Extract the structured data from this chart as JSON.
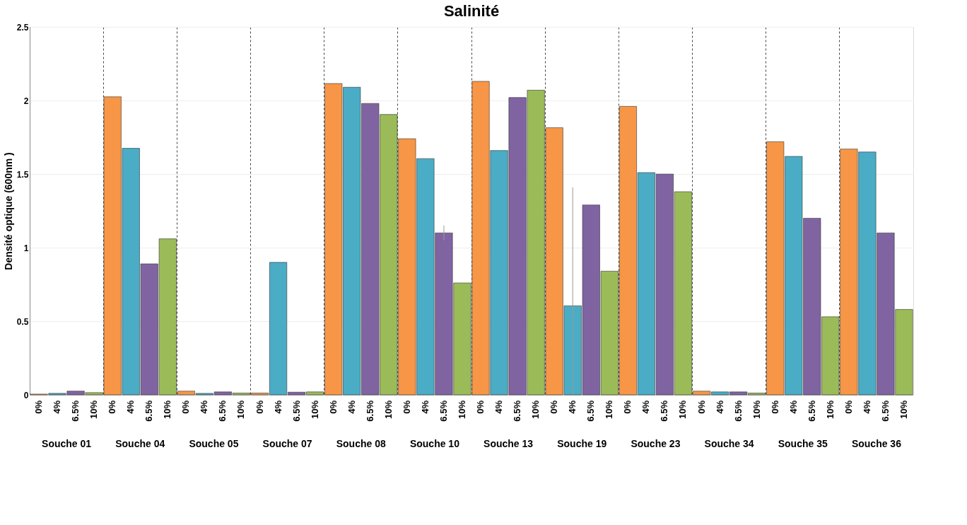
{
  "chart_data": {
    "type": "bar",
    "title": "Salinité",
    "ylabel": "Densité optique (600nm )",
    "categories": [
      "Souche 01",
      "Souche 04",
      "Souche 05",
      "Souche 07",
      "Souche 08",
      "Souche 10",
      "Souche 13",
      "Souche 19",
      "Souche 23",
      "Souche 34",
      "Souche 35",
      "Souche 36"
    ],
    "series": [
      {
        "name": "0%",
        "color": "#f79646",
        "values": [
          0.005,
          2.025,
          0.025,
          0.012,
          2.115,
          1.74,
          2.13,
          1.815,
          1.96,
          0.025,
          1.72,
          1.67
        ]
      },
      {
        "name": "4%",
        "color": "#4bacc6",
        "values": [
          0.01,
          1.675,
          0.01,
          0.9,
          2.09,
          1.605,
          1.66,
          0.605,
          1.51,
          0.02,
          1.62,
          1.65
        ],
        "errors": [
          null,
          null,
          null,
          null,
          null,
          null,
          null,
          [
            0,
            1.41
          ],
          null,
          null,
          null,
          null
        ]
      },
      {
        "name": "6.5%",
        "color": "#8064a2",
        "values": [
          0.025,
          0.89,
          0.02,
          0.018,
          1.98,
          1.1,
          2.02,
          1.29,
          1.5,
          0.02,
          1.2,
          1.1
        ],
        "errors": [
          null,
          null,
          null,
          null,
          null,
          0.05,
          null,
          null,
          null,
          null,
          null,
          null
        ]
      },
      {
        "name": "10%",
        "color": "#9bbb59",
        "values": [
          0.015,
          1.06,
          0.012,
          0.02,
          1.905,
          0.76,
          2.07,
          0.84,
          1.38,
          0.012,
          0.53,
          0.58
        ]
      }
    ],
    "ylim": [
      0,
      2.5
    ],
    "yticks": [
      0,
      0.5,
      1,
      1.5,
      2,
      2.5
    ],
    "grid": true,
    "legend": false
  }
}
